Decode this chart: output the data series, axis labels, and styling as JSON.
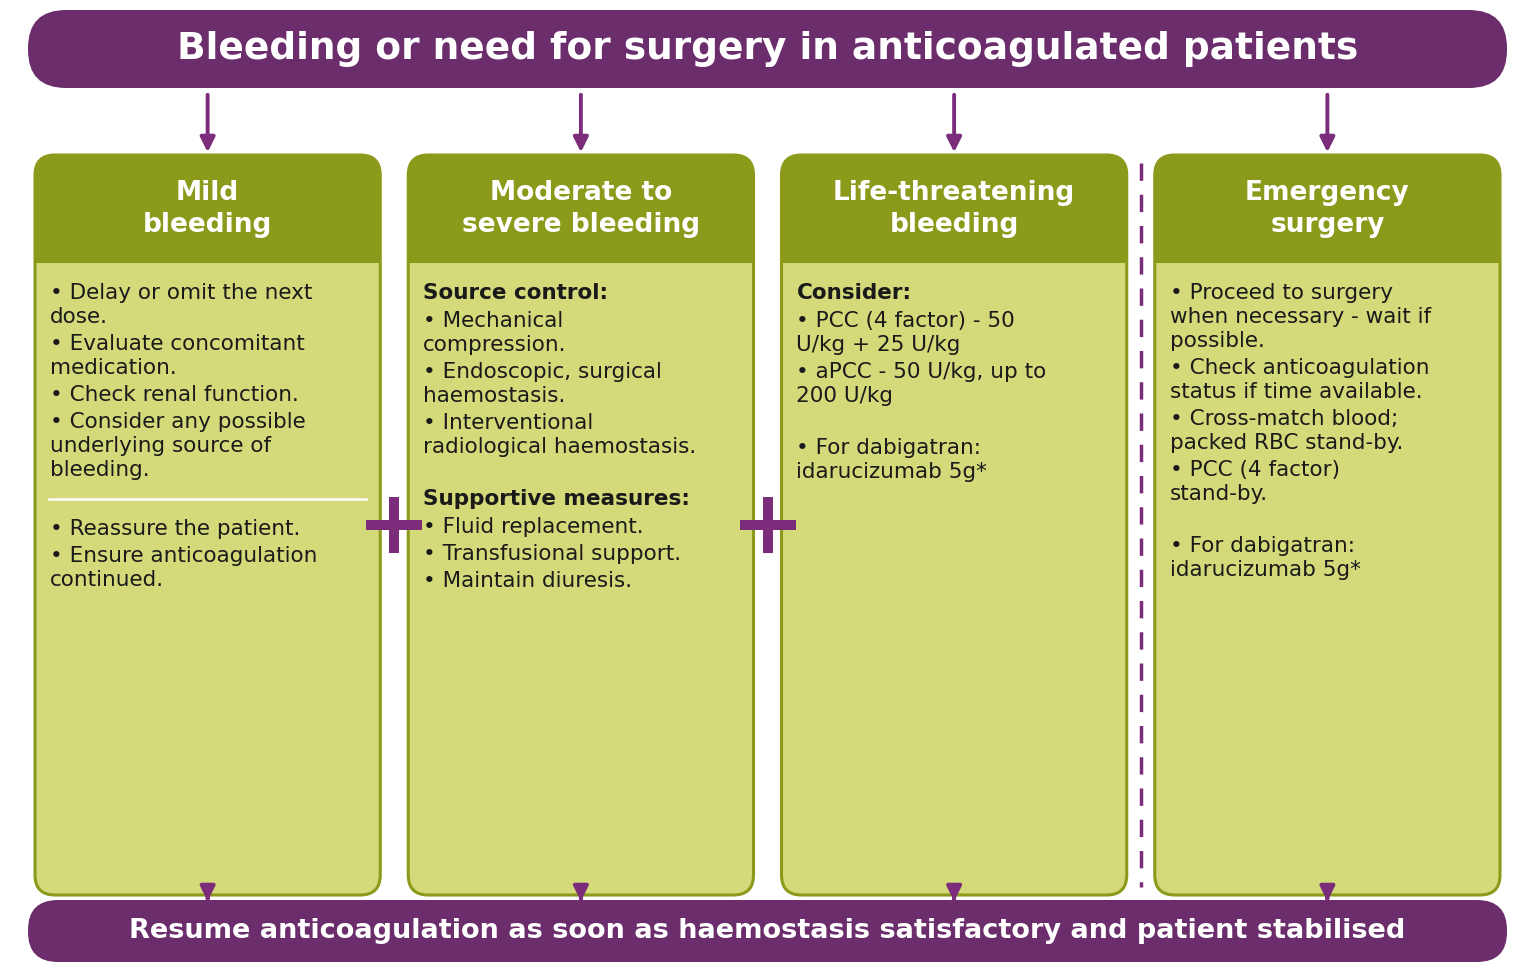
{
  "title": "Bleeding or need for surgery in anticoagulated patients",
  "footer": "Resume anticoagulation as soon as haemostasis satisfactory and patient stabilised",
  "bg_color": "#ffffff",
  "header_bg": "#6b2d6b",
  "footer_bg": "#6b2d6b",
  "header_text_color": "#ffffff",
  "footer_text_color": "#ffffff",
  "box_header_bg": "#8b9a1a",
  "box_body_bg": "#d4d97a",
  "box_border_color": "#8b9a1a",
  "arrow_color": "#7b2d7b",
  "plus_color": "#7b2d7b",
  "dashed_line_color": "#7b2d7b",
  "box_header_text_color": "#ffffff",
  "box_body_text_color": "#1a1a1a",
  "bold_label_color": "#1a1a1a",
  "separator_color": "#ffffff",
  "columns": [
    {
      "header": "Mild\nbleeding",
      "body_sections": [
        {
          "bold_label": "",
          "items": [
            "• Delay or omit the next\ndose.",
            "• Evaluate concomitant\nmedication.",
            "• Check renal function.",
            "• Consider any possible\nunderlying source of\nbleeding."
          ]
        },
        {
          "separator": true
        },
        {
          "bold_label": "",
          "items": [
            "• Reassure the patient.",
            "• Ensure anticoagulation\ncontinued."
          ]
        }
      ]
    },
    {
      "header": "Moderate to\nsevere bleeding",
      "body_sections": [
        {
          "bold_label": "Source control:",
          "items": [
            "• Mechanical\ncompression.",
            "• Endoscopic, surgical\nhaemostasis.",
            "• Interventional\nradiological haemostasis."
          ]
        },
        {
          "gap": true
        },
        {
          "bold_label": "Supportive measures:",
          "items": [
            "• Fluid replacement.",
            "• Transfusional support.",
            "• Maintain diuresis."
          ]
        }
      ]
    },
    {
      "header": "Life-threatening\nbleeding",
      "body_sections": [
        {
          "bold_label": "Consider:",
          "items": [
            "• PCC (4 factor) - 50\nU/kg + 25 U/kg",
            "• aPCC - 50 U/kg, up to\n200 U/kg"
          ]
        },
        {
          "gap": true
        },
        {
          "bold_label": "",
          "items": [
            "• For dabigatran:\nidarucizumab 5g*"
          ]
        }
      ]
    },
    {
      "header": "Emergency\nsurgery",
      "body_sections": [
        {
          "bold_label": "",
          "items": [
            "• Proceed to surgery\nwhen necessary - wait if\npossible.",
            "• Check anticoagulation\nstatus if time available.",
            "• Cross-match blood;\npacked RBC stand-by.",
            "• PCC (4 factor)\nstand-by."
          ]
        },
        {
          "gap": true
        },
        {
          "bold_label": "",
          "items": [
            "• For dabigatran:\nidarucizumab 5g*"
          ]
        }
      ]
    }
  ]
}
